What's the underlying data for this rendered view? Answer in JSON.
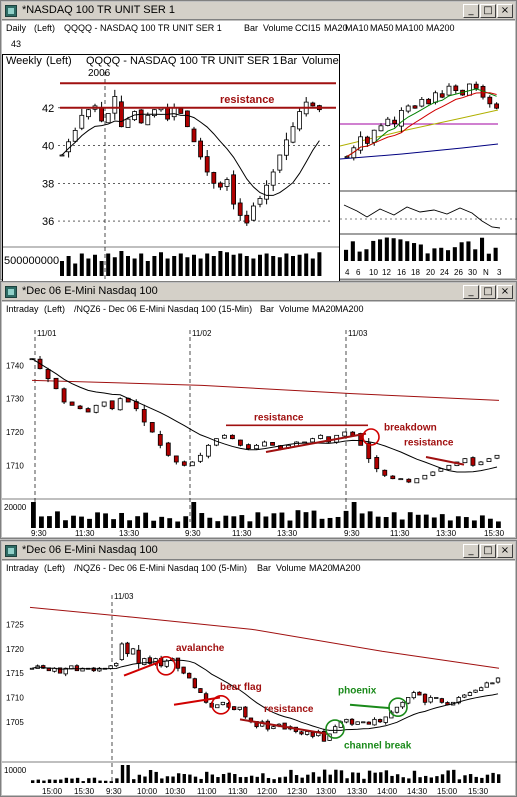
{
  "windows": [
    {
      "title": "*NASDAQ 100 TR UNIT SER 1",
      "header": {
        "period": "Daily",
        "scale": "(Left)",
        "symbol": "QQQQ - NASDAQ 100 TR UNIT SER 1",
        "items": [
          "Bar",
          "Volume",
          "CCI15",
          "MA20",
          "MA10",
          "MA50",
          "MA100",
          "MA200"
        ]
      },
      "colors": {
        "MA20": "#d00000",
        "MA10": "#008000",
        "MA50": "#b0b000",
        "MA100": "#000080",
        "MA200": "#a000a0"
      }
    },
    {
      "title": "*Dec 06  E-Mini Nasdaq 100",
      "header": {
        "period": "Intraday",
        "scale": "(Left)",
        "symbol": "/NQZ6 - Dec 06  E-Mini Nasdaq 100 (15-Min)",
        "items": [
          "Bar",
          "Volume",
          "MA20",
          "MA200"
        ]
      }
    },
    {
      "title": "*Dec 06  E-Mini Nasdaq 100",
      "header": {
        "period": "Intraday",
        "scale": "(Left)",
        "symbol": "/NQZ6 - Dec 06  E-Mini Nasdaq 100 (5-Min)",
        "items": [
          "Bar",
          "Volume",
          "MA20",
          "MA200"
        ]
      }
    }
  ],
  "inset": {
    "header": {
      "period": "Weekly",
      "scale": "(Left)",
      "symbol": "QQQQ - NASDAQ 100 TR UNIT SER 1",
      "items": [
        "Bar",
        "Volume"
      ]
    }
  },
  "chart_data": [
    {
      "id": "daily",
      "type": "bar",
      "y_axis_top_label": "43",
      "x_tick_labels": [
        "4",
        "6",
        "10",
        "12",
        "16",
        "18",
        "20",
        "24",
        "26",
        "30",
        "N",
        "3"
      ],
      "ohlc_close": [
        39.7,
        40.1,
        40.6,
        40.3,
        40.9,
        41.1,
        41.4,
        41.2,
        41.8,
        42.0,
        41.9,
        42.3,
        42.1,
        42.6,
        42.4,
        42.9,
        42.7,
        42.5,
        43.0,
        42.8,
        42.4,
        42.1,
        41.9
      ],
      "series": [
        {
          "name": "MA20"
        },
        {
          "name": "MA10"
        },
        {
          "name": "MA50"
        },
        {
          "name": "MA100"
        },
        {
          "name": "MA200"
        },
        {
          "name": "CCI15"
        },
        {
          "name": "Volume"
        }
      ]
    },
    {
      "id": "weekly",
      "type": "bar",
      "annotations": [
        "2006",
        "resistance"
      ],
      "ylim": [
        35,
        44
      ],
      "y_tick_labels": [
        "42",
        "40",
        "38",
        "36"
      ],
      "resistance_levels": [
        43.3,
        42.0
      ],
      "volume_axis_label": "500000000",
      "x_tick_labels": [
        "N",
        "D",
        "J",
        "F",
        "M",
        "A",
        "M",
        "J",
        "J",
        "A",
        "S",
        "O"
      ],
      "ohlc_close": [
        39.5,
        40.2,
        40.8,
        41.6,
        41.9,
        42.1,
        41.3,
        41.7,
        42.6,
        41.0,
        41.4,
        41.8,
        41.2,
        41.6,
        41.9,
        42.0,
        41.4,
        42.0,
        41.7,
        41.0,
        40.2,
        39.4,
        38.6,
        38.0,
        37.8,
        38.2,
        36.9,
        36.3,
        35.9,
        36.8,
        37.2,
        37.9,
        38.6,
        39.5,
        40.3,
        41.0,
        41.8,
        42.3,
        42.1,
        41.9
      ],
      "volume_rel": [
        0.6,
        0.8,
        0.5,
        0.9,
        0.7,
        0.85,
        0.6,
        0.9,
        0.75,
        1.0,
        0.8,
        0.7,
        0.9,
        0.6,
        0.8,
        0.95,
        0.7,
        0.8,
        0.9,
        0.75,
        0.85,
        0.7,
        0.9,
        0.8,
        1.0,
        0.95,
        0.85,
        0.9,
        0.8,
        0.7,
        0.85,
        0.9,
        0.8,
        0.75,
        0.9,
        0.8,
        0.85,
        0.9,
        0.7,
        0.95
      ]
    },
    {
      "id": "15min",
      "type": "bar",
      "annotations": [
        "resistance",
        "breakdown",
        "resistance"
      ],
      "ylim": [
        1702,
        1747
      ],
      "y_tick_labels": [
        "1740",
        "1730",
        "1720",
        "1710"
      ],
      "volume_axis_label": "20000",
      "session_labels": [
        "11/01",
        "11/02",
        "11/03"
      ],
      "x_tick_labels": [
        "9:30",
        "11:30",
        "13:30",
        "9:30",
        "11:30",
        "13:30",
        "9:30",
        "11:30",
        "13:30",
        "15:30"
      ],
      "resistance_level": 1722
    },
    {
      "id": "5min",
      "type": "bar",
      "annotations": [
        "avalanche",
        "bear flag",
        "resistance",
        "phoenix",
        "channel break"
      ],
      "ylim": [
        1699,
        1729
      ],
      "y_tick_labels": [
        "1725",
        "1720",
        "1715",
        "1710",
        "1705"
      ],
      "volume_axis_label": "10000",
      "session_labels": [
        "11/03"
      ],
      "x_tick_labels": [
        "15:00",
        "15:30",
        "9:30",
        "10:00",
        "10:30",
        "11:00",
        "11:30",
        "12:00",
        "12:30",
        "13:00",
        "13:30",
        "14:00",
        "14:30",
        "15:00",
        "15:30"
      ]
    }
  ]
}
